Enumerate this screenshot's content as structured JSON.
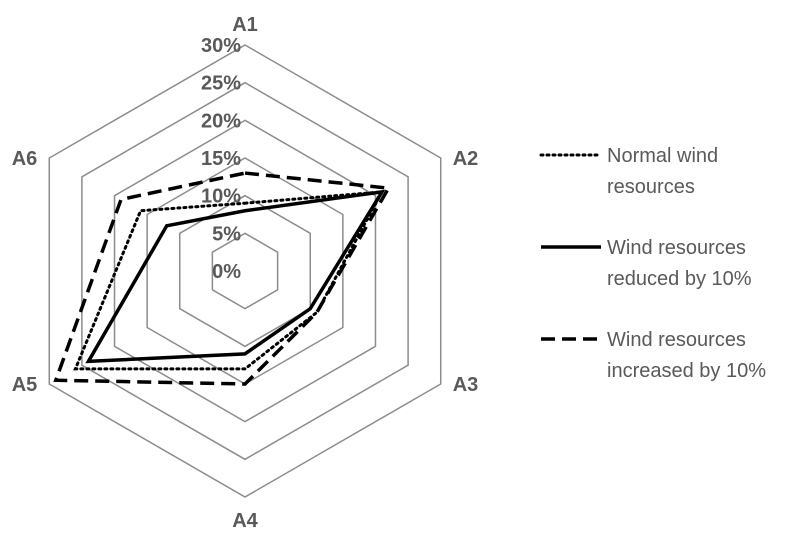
{
  "chart_data": {
    "type": "radar",
    "categories": [
      "A1",
      "A2",
      "A3",
      "A4",
      "A5",
      "A6"
    ],
    "r_ticks": [
      "0%",
      "5%",
      "10%",
      "15%",
      "20%",
      "25%",
      "30%"
    ],
    "rlim": [
      0,
      30
    ],
    "grid": true,
    "legend_position": "right",
    "series": [
      {
        "name": "Normal wind resources",
        "values": [
          9,
          21,
          11,
          13,
          26,
          16
        ],
        "line_style": "dotted",
        "color": "#000000"
      },
      {
        "name": "Wind resources reduced by 10%",
        "values": [
          8,
          21,
          10,
          11,
          24,
          12
        ],
        "line_style": "solid",
        "color": "#000000"
      },
      {
        "name": "Wind resources increased by 10%",
        "values": [
          13,
          22,
          11,
          15,
          29,
          19
        ],
        "line_style": "dashed",
        "color": "#000000"
      }
    ],
    "grid_color": "#8c8c8c",
    "label_color": "#595959"
  },
  "legend": {
    "items": [
      {
        "lines": [
          "Normal wind",
          "resources"
        ]
      },
      {
        "lines": [
          "Wind resources",
          "reduced by 10%"
        ]
      },
      {
        "lines": [
          "Wind resources",
          "increased by 10%"
        ]
      }
    ]
  }
}
